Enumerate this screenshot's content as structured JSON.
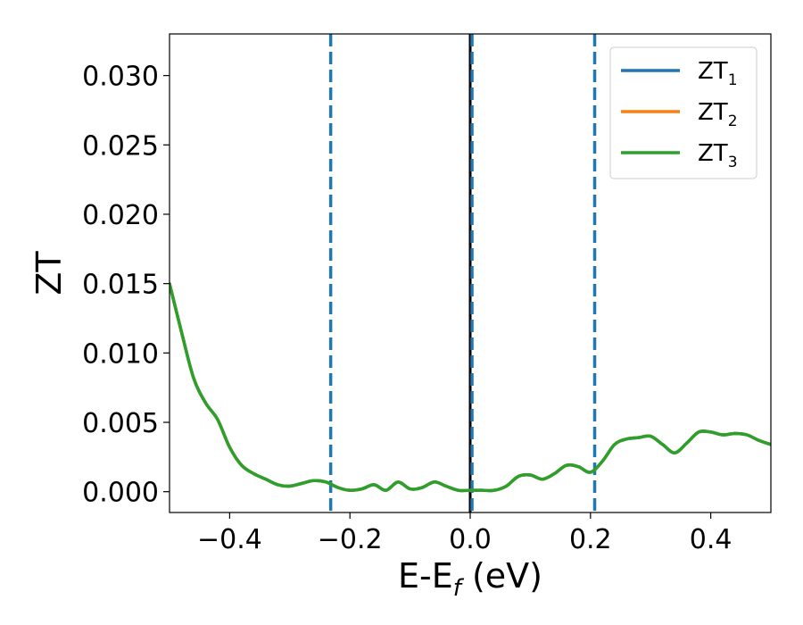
{
  "chart_data": {
    "type": "line",
    "xlabel": {
      "main": "E-E",
      "sub": "f",
      "suffix": " (eV)"
    },
    "ylabel": "ZT",
    "xlim": [
      -0.5,
      0.5
    ],
    "ylim": [
      -0.0015,
      0.033
    ],
    "xticks": [
      -0.4,
      -0.2,
      0.0,
      0.2,
      0.4
    ],
    "xtick_labels": [
      "−0.4",
      "−0.2",
      "0.0",
      "0.2",
      "0.4"
    ],
    "yticks": [
      0.0,
      0.005,
      0.01,
      0.015,
      0.02,
      0.025,
      0.03
    ],
    "ytick_labels": [
      "0.000",
      "0.005",
      "0.010",
      "0.015",
      "0.020",
      "0.025",
      "0.030"
    ],
    "grid": false,
    "legend_position": "top-right",
    "series": [
      {
        "name": "ZT",
        "sub": "1",
        "color": "#1f77b4",
        "x": [
          -0.5,
          -0.48,
          -0.46,
          -0.44,
          -0.42,
          -0.4,
          -0.38,
          -0.36,
          -0.34,
          -0.32,
          -0.3,
          -0.28,
          -0.26,
          -0.24,
          -0.22,
          -0.2,
          -0.18,
          -0.16,
          -0.14,
          -0.12,
          -0.1,
          -0.08,
          -0.06,
          -0.04,
          -0.02,
          0.0,
          0.02,
          0.04,
          0.06,
          0.08,
          0.1,
          0.12,
          0.14,
          0.16,
          0.18,
          0.2,
          0.22,
          0.24,
          0.26,
          0.28,
          0.3,
          0.32,
          0.34,
          0.36,
          0.38,
          0.4,
          0.42,
          0.44,
          0.46,
          0.48,
          0.5
        ],
        "y": [
          0.015,
          0.0115,
          0.0082,
          0.0064,
          0.0052,
          0.0032,
          0.0019,
          0.0013,
          0.0009,
          0.0005,
          0.0004,
          0.0006,
          0.0008,
          0.0007,
          0.0003,
          0.0001,
          0.0002,
          0.0005,
          0.0001,
          0.0007,
          0.0002,
          0.0003,
          0.0007,
          0.0004,
          0.0001,
          0.0001,
          0.0001,
          0.0001,
          0.0004,
          0.0011,
          0.0012,
          0.0009,
          0.0013,
          0.0019,
          0.0018,
          0.0014,
          0.0022,
          0.0034,
          0.0038,
          0.0039,
          0.004,
          0.0034,
          0.0028,
          0.0035,
          0.0043,
          0.0043,
          0.0041,
          0.0042,
          0.0041,
          0.0037,
          0.0034
        ]
      },
      {
        "name": "ZT",
        "sub": "2",
        "color": "#ff7f0e",
        "x": [
          -0.5,
          -0.48,
          -0.46,
          -0.44,
          -0.42,
          -0.4,
          -0.38,
          -0.36,
          -0.34,
          -0.32,
          -0.3,
          -0.28,
          -0.26,
          -0.24,
          -0.22,
          -0.2,
          -0.18,
          -0.16,
          -0.14,
          -0.12,
          -0.1,
          -0.08,
          -0.06,
          -0.04,
          -0.02,
          0.0,
          0.02,
          0.04,
          0.06,
          0.08,
          0.1,
          0.12,
          0.14,
          0.16,
          0.18,
          0.2,
          0.22,
          0.24,
          0.26,
          0.28,
          0.3,
          0.32,
          0.34,
          0.36,
          0.38,
          0.4,
          0.42,
          0.44,
          0.46,
          0.48,
          0.5
        ],
        "y": [
          0.015,
          0.0115,
          0.0082,
          0.0064,
          0.0052,
          0.0032,
          0.0019,
          0.0013,
          0.0009,
          0.0005,
          0.0004,
          0.0006,
          0.0008,
          0.0007,
          0.0003,
          0.0001,
          0.0002,
          0.0005,
          0.0001,
          0.0007,
          0.0002,
          0.0003,
          0.0007,
          0.0004,
          0.0001,
          0.0001,
          0.0001,
          0.0001,
          0.0004,
          0.0011,
          0.0012,
          0.0009,
          0.0013,
          0.0019,
          0.0018,
          0.0014,
          0.0022,
          0.0034,
          0.0038,
          0.0039,
          0.004,
          0.0034,
          0.0028,
          0.0035,
          0.0043,
          0.0043,
          0.0041,
          0.0042,
          0.0041,
          0.0037,
          0.0034
        ]
      },
      {
        "name": "ZT",
        "sub": "3",
        "color": "#2ca02c",
        "x": [
          -0.5,
          -0.48,
          -0.46,
          -0.44,
          -0.42,
          -0.4,
          -0.38,
          -0.36,
          -0.34,
          -0.32,
          -0.3,
          -0.28,
          -0.26,
          -0.24,
          -0.22,
          -0.2,
          -0.18,
          -0.16,
          -0.14,
          -0.12,
          -0.1,
          -0.08,
          -0.06,
          -0.04,
          -0.02,
          0.0,
          0.02,
          0.04,
          0.06,
          0.08,
          0.1,
          0.12,
          0.14,
          0.16,
          0.18,
          0.2,
          0.22,
          0.24,
          0.26,
          0.28,
          0.3,
          0.32,
          0.34,
          0.36,
          0.38,
          0.4,
          0.42,
          0.44,
          0.46,
          0.48,
          0.5
        ],
        "y": [
          0.015,
          0.0115,
          0.0082,
          0.0064,
          0.0052,
          0.0032,
          0.0019,
          0.0013,
          0.0009,
          0.0005,
          0.0004,
          0.0006,
          0.0008,
          0.0007,
          0.0003,
          0.0001,
          0.0002,
          0.0005,
          0.0001,
          0.0007,
          0.0002,
          0.0003,
          0.0007,
          0.0004,
          0.0001,
          0.0001,
          0.0001,
          0.0001,
          0.0004,
          0.0011,
          0.0012,
          0.0009,
          0.0013,
          0.0019,
          0.0018,
          0.0014,
          0.0022,
          0.0034,
          0.0038,
          0.0039,
          0.004,
          0.0034,
          0.0028,
          0.0035,
          0.0043,
          0.0043,
          0.0041,
          0.0042,
          0.0041,
          0.0037,
          0.0034
        ]
      }
    ],
    "vertical_lines": [
      {
        "x": 0.0,
        "style": "solid",
        "color": "#000000"
      },
      {
        "x": -0.232,
        "style": "dashed",
        "color": "#1f77b4"
      },
      {
        "x": 0.003,
        "style": "dashed",
        "color": "#1f77b4"
      },
      {
        "x": 0.207,
        "style": "dashed",
        "color": "#1f77b4"
      }
    ]
  }
}
